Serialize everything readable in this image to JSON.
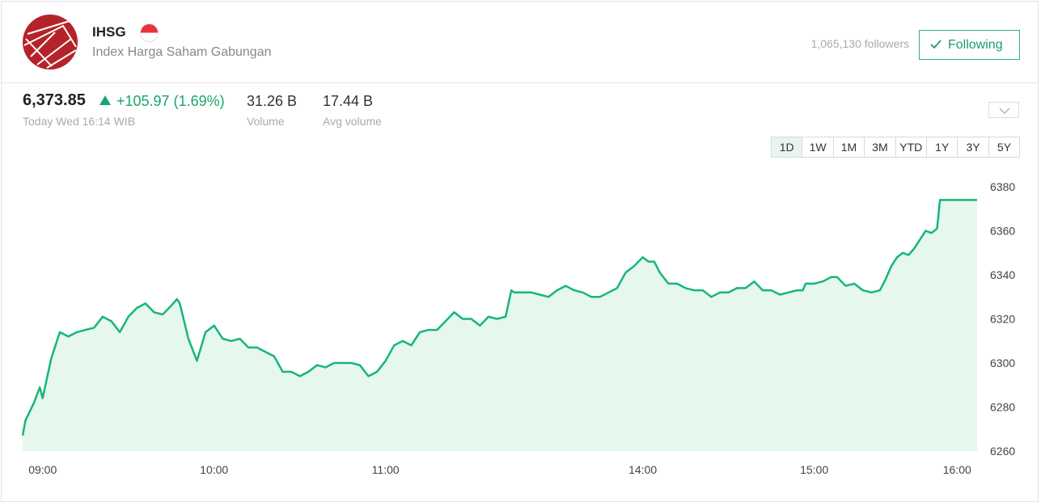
{
  "header": {
    "symbol": "IHSG",
    "name": "Index Harga Saham Gabungan",
    "followers": "1,065,130 followers",
    "follow_button": "Following"
  },
  "quote": {
    "price": "6,373.85",
    "change": "+105.97 (1.69%)",
    "time": "Today Wed 16:14 WIB",
    "stats": [
      {
        "value": "31.26 B",
        "label": "Volume"
      },
      {
        "value": "17.44 B",
        "label": "Avg volume"
      }
    ]
  },
  "ranges": {
    "options": [
      "1D",
      "1W",
      "1M",
      "3M",
      "YTD",
      "1Y",
      "3Y",
      "5Y"
    ],
    "selected_index": 0
  },
  "chart_data": {
    "type": "area",
    "color": "#16b67a",
    "fill_color": "#e6f7ee",
    "grid": false,
    "x": [
      -7,
      -6,
      -3,
      -1,
      0,
      3,
      6,
      9,
      12,
      15,
      18,
      21,
      24,
      27,
      30,
      33,
      36,
      39,
      42,
      45,
      47,
      48,
      51,
      54,
      57,
      60,
      63,
      66,
      69,
      72,
      75,
      78,
      81,
      84,
      87,
      90,
      93,
      96,
      99,
      102,
      105,
      108,
      111,
      114,
      117,
      120,
      123,
      126,
      129,
      132,
      135,
      138,
      141,
      144,
      147,
      150,
      153,
      156,
      159,
      162,
      164,
      165,
      168,
      171,
      174,
      177,
      180,
      183,
      186,
      189,
      192,
      195,
      198,
      201,
      204,
      207,
      210,
      212,
      214,
      216,
      219,
      222,
      225,
      228,
      231,
      234,
      237,
      240,
      243,
      246,
      249,
      252,
      255,
      258,
      261,
      264,
      266,
      267,
      270,
      273,
      276,
      278,
      281,
      284,
      287,
      290,
      293,
      295,
      297,
      299,
      301,
      303,
      305,
      307,
      309,
      311,
      313,
      314,
      327
    ],
    "values": [
      6267,
      6274,
      6282,
      6289,
      6284,
      6302,
      6314,
      6312,
      6314,
      6315,
      6316,
      6321,
      6319,
      6314,
      6321,
      6325,
      6327,
      6323,
      6322,
      6326,
      6329,
      6327,
      6311,
      6301,
      6314,
      6317,
      6311,
      6310,
      6311,
      6307,
      6307,
      6305,
      6303,
      6296,
      6296,
      6294,
      6296,
      6299,
      6298,
      6300,
      6300,
      6300,
      6299,
      6294,
      6296,
      6301,
      6308,
      6310,
      6308,
      6314,
      6315,
      6315,
      6319,
      6323,
      6320,
      6320,
      6317,
      6321,
      6320,
      6321,
      6333,
      6332,
      6332,
      6332,
      6331,
      6330,
      6333,
      6335,
      6333,
      6332,
      6330,
      6330,
      6332,
      6334,
      6341,
      6344,
      6348,
      6346,
      6346,
      6341,
      6336,
      6336,
      6334,
      6333,
      6333,
      6330,
      6332,
      6332,
      6334,
      6334,
      6337,
      6333,
      6333,
      6331,
      6332,
      6333,
      6333,
      6336,
      6336,
      6337,
      6339,
      6339,
      6335,
      6336,
      6333,
      6332,
      6333,
      6338,
      6344,
      6348,
      6350,
      6349,
      6352,
      6356,
      6360,
      6359,
      6361,
      6374,
      6374
    ],
    "xlim": [
      -7,
      327
    ],
    "xticks": [
      {
        "value": 0,
        "label": "09:00"
      },
      {
        "value": 60,
        "label": "10:00"
      },
      {
        "value": 120,
        "label": "11:00"
      },
      {
        "value": 210,
        "label": "14:00"
      },
      {
        "value": 270,
        "label": "15:00"
      },
      {
        "value": 320,
        "label": "16:00"
      }
    ],
    "ylim": [
      6260,
      6380
    ],
    "yticks": [
      6260,
      6280,
      6300,
      6320,
      6340,
      6360,
      6380
    ]
  }
}
